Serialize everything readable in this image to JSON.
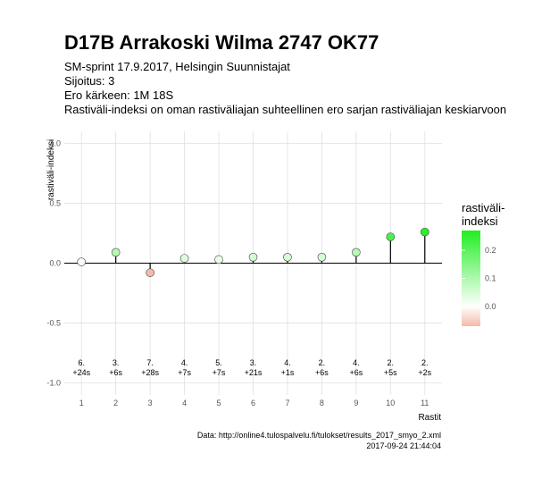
{
  "chart_data": {
    "type": "lollipop",
    "title": "D17B Arrakoski Wilma 2747 OK77",
    "subtitle": [
      "SM-sprint 17.9.2017, Helsingin Suunnistajat",
      "Sijoitus: 3",
      "Ero kärkeen: 1M 18S",
      "Rastiväli-indeksi on oman rastiväliajan suhteellinen ero sarjan rastiväliajan keskiarvoon"
    ],
    "y_label": "rastiväli-indeksi",
    "x_label": "Rastit",
    "x": [
      1,
      2,
      3,
      4,
      5,
      6,
      7,
      8,
      9,
      10,
      11
    ],
    "values": [
      0.01,
      0.09,
      -0.08,
      0.04,
      0.03,
      0.05,
      0.05,
      0.05,
      0.09,
      0.22,
      0.26
    ],
    "placements": [
      "6.",
      "3.",
      "7.",
      "4.",
      "5.",
      "3.",
      "4.",
      "2.",
      "4.",
      "2.",
      "2."
    ],
    "differences": [
      "+24s",
      "+6s",
      "+28s",
      "+7s",
      "+7s",
      "+21s",
      "+1s",
      "+6s",
      "+6s",
      "+5s",
      "+2s"
    ],
    "label_y": -0.87,
    "xlim": [
      0.5,
      11.5
    ],
    "xticks": [
      1,
      2,
      3,
      4,
      5,
      6,
      7,
      8,
      9,
      10,
      11
    ],
    "ylim": [
      -1.1,
      1.1
    ],
    "yticks": [
      {
        "value": -1,
        "label": "-1.0"
      },
      {
        "value": -0.5,
        "label": "-0.5"
      },
      {
        "value": 0,
        "label": "0.0"
      },
      {
        "value": 0.5,
        "label": "0.5"
      },
      {
        "value": 1,
        "label": "1.0"
      }
    ],
    "grid": true,
    "legend_title": [
      "rastiväli-",
      "indeksi"
    ],
    "color_lim": [
      -0.07,
      0.27
    ],
    "color_ticks": [
      {
        "value": 0,
        "label": "0.0"
      },
      0.1,
      0.2
    ],
    "color_low": "#f5b9a8",
    "color_mid": "#ffffff",
    "color_high": "#22ee22",
    "caption": [
      "Data: http://online4.tulospalvelu.fi/tulokset/results_2017_smyo_2.xml",
      "2017-09-24 21:44:04"
    ]
  }
}
